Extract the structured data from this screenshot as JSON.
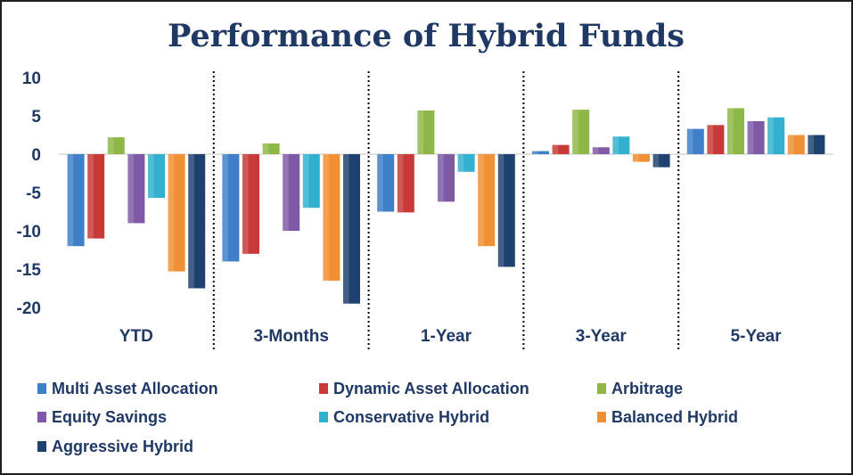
{
  "chart_data": {
    "type": "bar",
    "title": "Performance of Hybrid Funds",
    "xlabel": "",
    "ylabel": "",
    "ylim": [
      -20,
      10
    ],
    "yticks": [
      10,
      5,
      0,
      -5,
      -10,
      -15,
      -20
    ],
    "ytick_labels": [
      "10",
      "5",
      "0",
      "-5",
      "-10",
      "-15",
      "-20"
    ],
    "categories": [
      "YTD",
      "3-Months",
      "1-Year",
      "3-Year",
      "5-Year"
    ],
    "grid": false,
    "legend_position": "bottom",
    "series": [
      {
        "name": "Multi Asset Allocation",
        "color": "#3f7fc8",
        "values": [
          -12.0,
          -14.0,
          -7.5,
          0.4,
          3.3
        ]
      },
      {
        "name": "Dynamic Asset Allocation",
        "color": "#c83a38",
        "values": [
          -11.0,
          -13.0,
          -7.6,
          1.2,
          3.8
        ]
      },
      {
        "name": "Arbitrage",
        "color": "#8db848",
        "values": [
          2.2,
          1.4,
          5.7,
          5.8,
          6.0
        ]
      },
      {
        "name": "Equity Savings",
        "color": "#7e5aa6",
        "values": [
          -9.0,
          -10.0,
          -6.2,
          0.9,
          4.3
        ]
      },
      {
        "name": "Conservative Hybrid",
        "color": "#33b0cf",
        "values": [
          -5.7,
          -7.0,
          -2.3,
          2.3,
          4.8
        ]
      },
      {
        "name": "Balanced Hybrid",
        "color": "#f08f33",
        "values": [
          -15.3,
          -16.5,
          -12.0,
          -1.0,
          2.5
        ]
      },
      {
        "name": "Aggressive Hybrid",
        "color": "#1f416f",
        "values": [
          -17.5,
          -19.5,
          -14.7,
          -1.7,
          2.5
        ]
      }
    ]
  }
}
